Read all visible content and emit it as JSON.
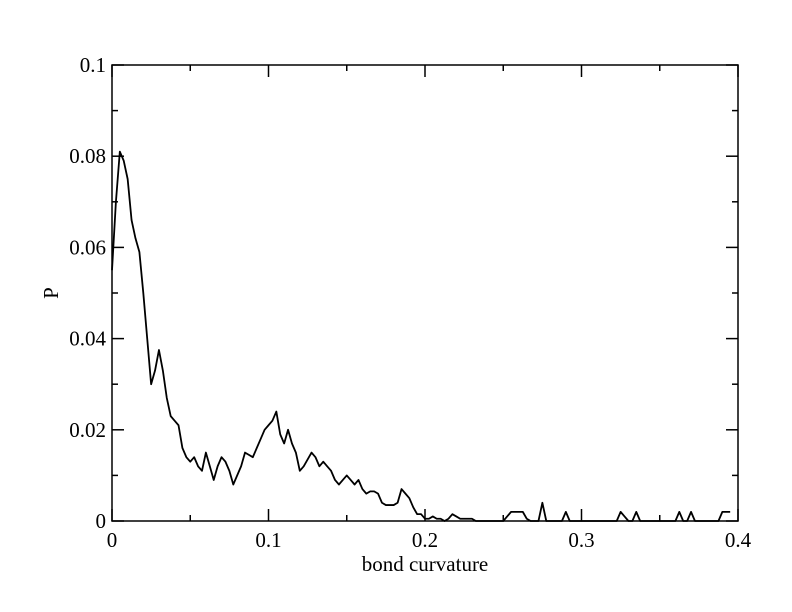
{
  "chart_data": {
    "type": "line",
    "xlabel": "bond curvature",
    "ylabel": "P",
    "x": [
      0,
      0.0025,
      0.005,
      0.0075,
      0.01,
      0.0125,
      0.015,
      0.0175,
      0.02,
      0.0225,
      0.025,
      0.0275,
      0.03,
      0.0325,
      0.035,
      0.0375,
      0.04,
      0.0425,
      0.045,
      0.0475,
      0.05,
      0.0525,
      0.055,
      0.0575,
      0.06,
      0.0625,
      0.065,
      0.0675,
      0.07,
      0.0725,
      0.075,
      0.0775,
      0.08,
      0.0825,
      0.085,
      0.0875,
      0.09,
      0.0925,
      0.095,
      0.0975,
      0.1,
      0.1025,
      0.105,
      0.1075,
      0.11,
      0.1125,
      0.115,
      0.1175,
      0.12,
      0.1225,
      0.125,
      0.1275,
      0.13,
      0.1325,
      0.135,
      0.1375,
      0.14,
      0.1425,
      0.145,
      0.1475,
      0.15,
      0.1525,
      0.155,
      0.1575,
      0.16,
      0.1625,
      0.165,
      0.1675,
      0.17,
      0.1725,
      0.175,
      0.1775,
      0.18,
      0.1825,
      0.185,
      0.1875,
      0.19,
      0.1925,
      0.195,
      0.1975,
      0.2,
      0.2025,
      0.205,
      0.2075,
      0.21,
      0.2125,
      0.215,
      0.2175,
      0.22,
      0.2225,
      0.225,
      0.2275,
      0.23,
      0.2325,
      0.235,
      0.24,
      0.2475,
      0.25,
      0.2525,
      0.255,
      0.2625,
      0.265,
      0.2675,
      0.2725,
      0.275,
      0.2775,
      0.2875,
      0.29,
      0.2925,
      0.3225,
      0.325,
      0.3275,
      0.33,
      0.3325,
      0.335,
      0.3375,
      0.36,
      0.3625,
      0.365,
      0.3675,
      0.37,
      0.3725,
      0.3875,
      0.39,
      0.395
    ],
    "series": [
      {
        "color": "#000000",
        "values": [
          0.055,
          0.07,
          0.081,
          0.079,
          0.075,
          0.066,
          0.062,
          0.059,
          0.05,
          0.04,
          0.03,
          0.033,
          0.0375,
          0.033,
          0.027,
          0.023,
          0.022,
          0.021,
          0.016,
          0.014,
          0.013,
          0.014,
          0.012,
          0.011,
          0.015,
          0.012,
          0.009,
          0.012,
          0.014,
          0.013,
          0.011,
          0.008,
          0.01,
          0.012,
          0.015,
          0.0145,
          0.014,
          0.016,
          0.018,
          0.02,
          0.021,
          0.022,
          0.024,
          0.019,
          0.017,
          0.02,
          0.017,
          0.015,
          0.011,
          0.012,
          0.0135,
          0.015,
          0.014,
          0.012,
          0.013,
          0.012,
          0.011,
          0.009,
          0.008,
          0.009,
          0.01,
          0.009,
          0.008,
          0.009,
          0.007,
          0.006,
          0.0065,
          0.0065,
          0.006,
          0.004,
          0.0035,
          0.0035,
          0.0035,
          0.004,
          0.007,
          0.006,
          0.005,
          0.003,
          0.0015,
          0.0015,
          0.0005,
          0.0005,
          0.001,
          0.0005,
          0.0005,
          0,
          0.0005,
          0.0015,
          0.001,
          0.0005,
          0.0005,
          0.0005,
          0.0005,
          0,
          0,
          0,
          0,
          0,
          0.001,
          0.002,
          0.002,
          0.0005,
          0,
          0,
          0.004,
          0,
          0,
          0.002,
          0,
          0,
          0.002,
          0.001,
          0,
          0,
          0.002,
          0,
          0,
          0.002,
          0,
          0,
          0.002,
          0,
          0,
          0.002,
          0.002
        ]
      }
    ],
    "xlim": [
      0,
      0.4
    ],
    "ylim": [
      0,
      0.1
    ],
    "xticks": [
      0,
      0.1,
      0.2,
      0.3,
      0.4
    ],
    "yticks": [
      0,
      0.02,
      0.04,
      0.06,
      0.08,
      0.1
    ],
    "xminorticks": [
      0.05,
      0.15,
      0.25,
      0.35
    ],
    "yminorticks": [
      0.01,
      0.03,
      0.05,
      0.07,
      0.09
    ]
  }
}
